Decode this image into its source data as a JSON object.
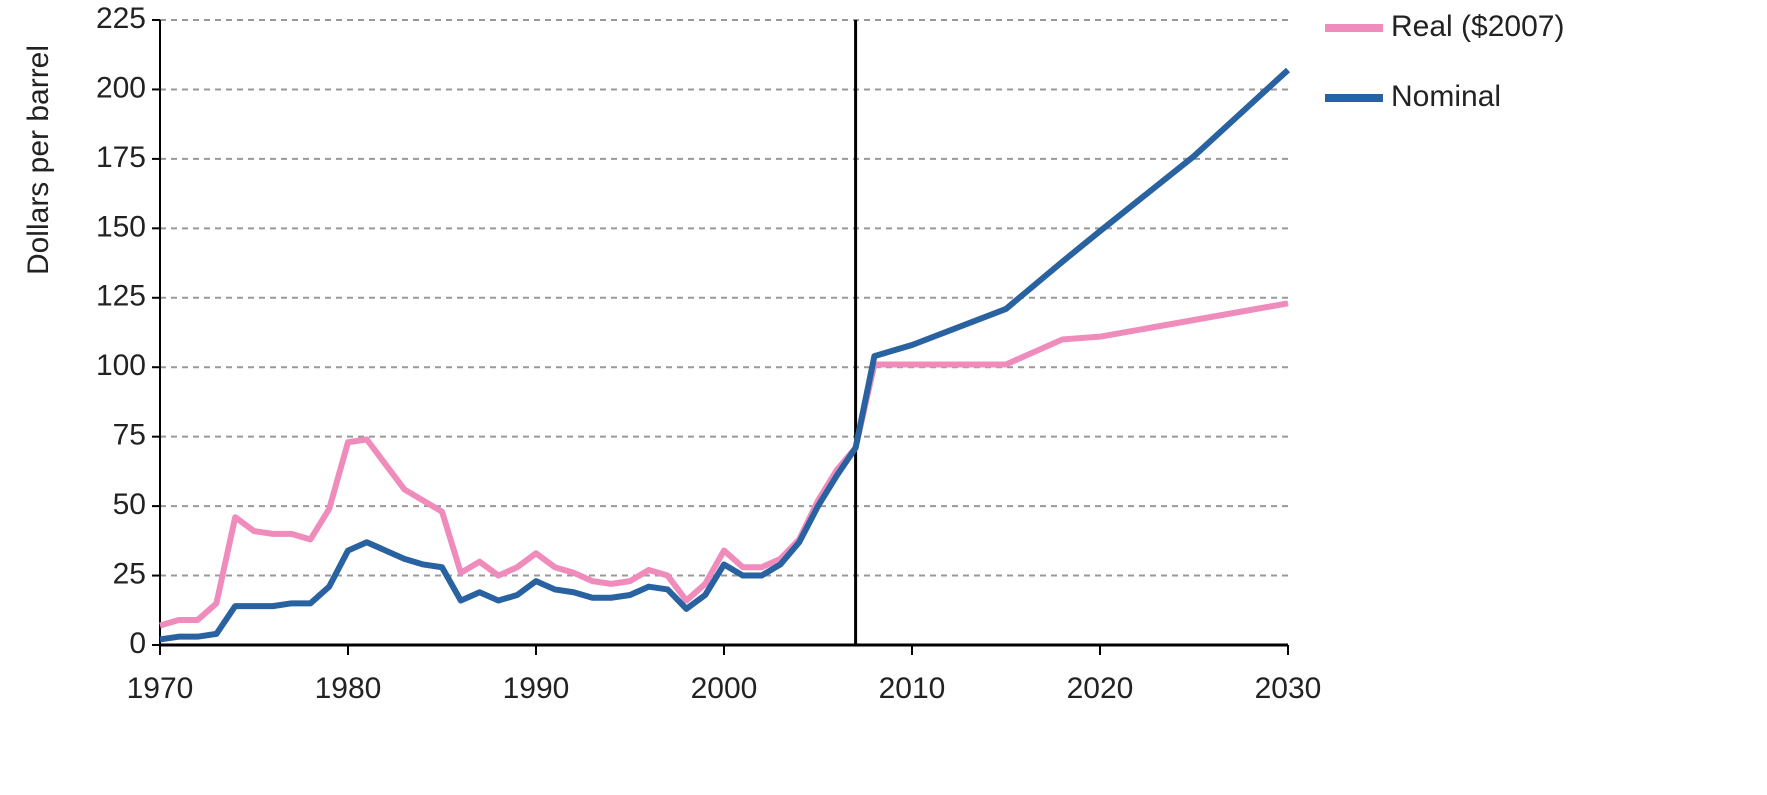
{
  "chart_data": {
    "type": "line",
    "y_label": "Dollars per barrel",
    "x": [
      1970,
      1971,
      1972,
      1973,
      1974,
      1975,
      1976,
      1977,
      1978,
      1979,
      1980,
      1981,
      1982,
      1983,
      1984,
      1985,
      1986,
      1987,
      1988,
      1989,
      1990,
      1991,
      1992,
      1993,
      1994,
      1995,
      1996,
      1997,
      1998,
      1999,
      2000,
      2001,
      2002,
      2003,
      2004,
      2005,
      2006,
      2007,
      2008,
      2010,
      2015,
      2018,
      2020,
      2025,
      2030
    ],
    "series": [
      {
        "name": "Real ($2007)",
        "color": "#f08cbc",
        "values": [
          7,
          9,
          9,
          15,
          46,
          41,
          40,
          40,
          38,
          49,
          73,
          74,
          65,
          56,
          52,
          48,
          26,
          30,
          25,
          28,
          33,
          28,
          26,
          23,
          22,
          23,
          27,
          25,
          16,
          22,
          34,
          28,
          28,
          31,
          38,
          52,
          63,
          71,
          101,
          101,
          101,
          110,
          111,
          117,
          123
        ]
      },
      {
        "name": "Nominal",
        "color": "#2862a0",
        "values": [
          2,
          3,
          3,
          4,
          14,
          14,
          14,
          15,
          15,
          21,
          34,
          37,
          34,
          31,
          29,
          28,
          16,
          19,
          16,
          18,
          23,
          20,
          19,
          17,
          17,
          18,
          21,
          20,
          13,
          18,
          29,
          25,
          25,
          29,
          37,
          50,
          61,
          71,
          104,
          108,
          121,
          138,
          149,
          176,
          207
        ]
      }
    ],
    "vline": 2007,
    "xlim": [
      1970,
      2030
    ],
    "xticks": [
      1970,
      1980,
      1990,
      2000,
      2010,
      2020,
      2030
    ],
    "ylim": [
      0,
      225
    ],
    "yticks": [
      0,
      25,
      50,
      75,
      100,
      125,
      150,
      175,
      200,
      225
    ],
    "grid": true,
    "legend": "top-right"
  }
}
